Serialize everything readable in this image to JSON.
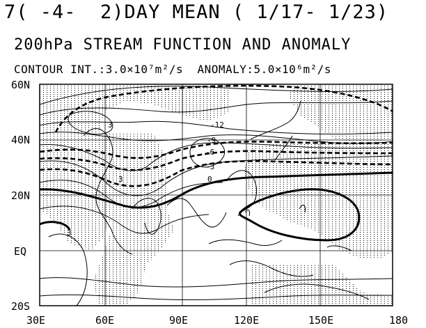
{
  "header": {
    "line1": "7( -4-  2)DAY MEAN ( 1/17- 1/23)",
    "line2": "200hPa STREAM FUNCTION AND ANOMALY",
    "line3": "CONTOUR INT.:3.0×10⁷m²/s  ANOMALY:5.0×10⁶m²/s"
  },
  "axes": {
    "lat_labels": [
      "60N",
      "40N",
      "20N",
      "EQ",
      "20S"
    ],
    "lon_labels": [
      "30E",
      "60E",
      "90E",
      "120E",
      "150E",
      "180"
    ]
  },
  "contour_labels": [
    "-12",
    "-9",
    "-6",
    "-3",
    "0",
    "3",
    "3",
    "3"
  ],
  "colors": {
    "ink": "#000000",
    "background": "#ffffff"
  }
}
